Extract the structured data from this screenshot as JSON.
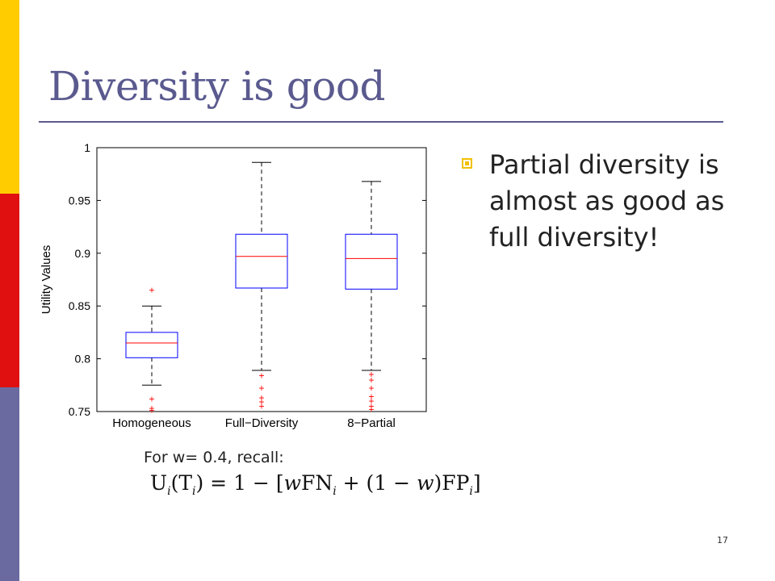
{
  "slide": {
    "title": "Diversity is good",
    "bullet": "Partial diversity is almost as good as full diversity!",
    "note": "For w= 0.4, recall:",
    "formula": {
      "lhs": "U",
      "sub_i": "i",
      "arg": "(T",
      "rhs_a": ") = 1 − [",
      "w": "w",
      "fn": "FN",
      "mid": " + (1 − ",
      "mid2": ")",
      "fp": "FP",
      "end": "]"
    },
    "page_number": "17"
  },
  "colors": {
    "title": "#5a5a8f",
    "band_top": "#ffcc00",
    "band_mid": "#e01010",
    "band_bottom": "#6a6aa0",
    "box": "#0000ff",
    "median": "#ff0000",
    "outlier": "#ff0000"
  },
  "chart_data": {
    "type": "box",
    "ylabel": "Utility Values",
    "ylim": [
      0.75,
      1.0
    ],
    "yticks": [
      "0.75",
      "0.8",
      "0.85",
      "0.9",
      "0.95",
      "1"
    ],
    "categories": [
      "Homogeneous",
      "Full−Diversity",
      "8−Partial"
    ],
    "boxes": [
      {
        "category": "Homogeneous",
        "whisker_low": 0.775,
        "q1": 0.801,
        "median": 0.815,
        "q3": 0.825,
        "whisker_high": 0.85,
        "outliers": [
          0.865,
          0.762,
          0.753,
          0.751
        ]
      },
      {
        "category": "Full−Diversity",
        "whisker_low": 0.789,
        "q1": 0.867,
        "median": 0.897,
        "q3": 0.918,
        "whisker_high": 0.986,
        "outliers": [
          0.784,
          0.772,
          0.763,
          0.759,
          0.755
        ]
      },
      {
        "category": "8−Partial",
        "whisker_low": 0.789,
        "q1": 0.866,
        "median": 0.895,
        "q3": 0.918,
        "whisker_high": 0.968,
        "outliers": [
          0.785,
          0.78,
          0.772,
          0.764,
          0.76,
          0.755,
          0.752
        ]
      }
    ],
    "grid": false
  }
}
